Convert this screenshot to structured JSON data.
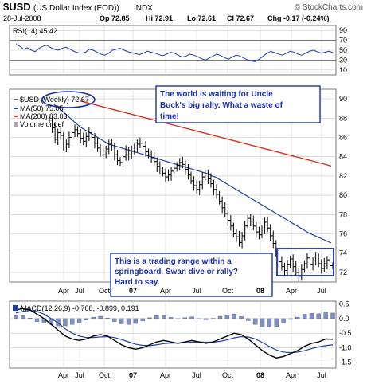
{
  "header": {
    "symbol": "$USD",
    "name": "(US Dollar Index (EOD))",
    "exchange": "INDX",
    "watermark": "© StockCharts.com",
    "date": "28-Jul-2008",
    "quote": {
      "op": "Op 72.85",
      "hi": "Hi 72.91",
      "lo": "Lo 72.61",
      "cl": "Cl 72.67",
      "chg": "Chg -0.17 (-0.24%)"
    }
  },
  "colors": {
    "price": "#000000",
    "ma50": "#1f3fa8",
    "ma200": "#d8321e",
    "rsi": "#1f3fa8",
    "macd": "#000000",
    "signal": "#1f3fa8",
    "histogram": "#7f8fbf",
    "grid": "#c8c8c8",
    "annotation": "#1a2fb0",
    "band": "#1a2fb0"
  },
  "rsi_panel": {
    "label": "RSI(14) 45.42",
    "ticks": [
      "90",
      "70",
      "50",
      "30",
      "10"
    ]
  },
  "price_panel": {
    "legend": {
      "price": "$USD (Weekly) 72.67",
      "ma50": "MA(50) 75.05",
      "ma200": "MA(200) 83.03",
      "volume": "Volume undef"
    },
    "y_ticks": [
      "90",
      "88",
      "86",
      "84",
      "82",
      "80",
      "78",
      "76",
      "74",
      "72"
    ]
  },
  "annotations": {
    "top": "The world is waiting for Uncle Buck's big rally.  What a waste of time!",
    "bottom": "This is a trading range within a springboard.  Swan dive or rally? Hard to say."
  },
  "macd_panel": {
    "label": "MACD(12,26,9) -0.708, -0.899, 0.191",
    "y_ticks": [
      "0.5",
      "0.0",
      "-0.5",
      "-1.0",
      "-1.5"
    ]
  },
  "x_axis": {
    "labels": [
      "Apr",
      "Jul",
      "Oct",
      "07",
      "Apr",
      "Jul",
      "Oct",
      "08",
      "Apr",
      "Jul"
    ]
  },
  "chart_data": {
    "type": "line",
    "title": "$USD (US Dollar Index (EOD)) INDX",
    "price_close": [
      87.8,
      87.0,
      85.8,
      86.5,
      86.2,
      85.0,
      85.3,
      86.0,
      86.5,
      86.8,
      86.4,
      85.9,
      85.6,
      86.1,
      86.5,
      86.0,
      85.4,
      84.9,
      84.6,
      84.2,
      84.8,
      85.3,
      85.0,
      84.2,
      83.6,
      83.4,
      84.0,
      84.6,
      84.2,
      84.6,
      85.0,
      85.3,
      85.4,
      85.1,
      84.5,
      84.2,
      83.9,
      83.5,
      83.0,
      82.6,
      82.3,
      81.9,
      82.1,
      82.5,
      82.8,
      83.1,
      83.4,
      83.2,
      82.7,
      82.1,
      81.5,
      81.0,
      80.6,
      81.1,
      81.9,
      82.2,
      81.7,
      81.2,
      80.6,
      80.1,
      79.4,
      78.7,
      78.1,
      77.4,
      76.8,
      76.0,
      75.7,
      75.1,
      75.8,
      76.8,
      77.6,
      77.3,
      76.8,
      76.2,
      75.9,
      76.5,
      77.2,
      76.6,
      75.8,
      75.0,
      74.0,
      73.1,
      72.6,
      72.2,
      72.8,
      73.4,
      72.6,
      72.0,
      71.6,
      72.3,
      72.9,
      73.5,
      72.8,
      73.2,
      73.6,
      72.9,
      72.4,
      72.9,
      73.3,
      72.7,
      72.67
    ],
    "ma50": [
      89.4,
      89.2,
      88.9,
      88.6,
      88.3,
      88.0,
      87.7,
      87.4,
      87.1,
      86.9,
      86.7,
      86.5,
      86.3,
      86.1,
      85.9,
      85.7,
      85.5,
      85.3,
      85.2,
      85.1,
      85.0,
      84.9,
      84.8,
      84.7,
      84.6,
      84.5,
      84.4,
      84.3,
      84.2,
      84.1,
      84.0,
      83.9,
      83.8,
      83.7,
      83.6,
      83.5,
      83.4,
      83.3,
      83.2,
      83.1,
      83.0,
      82.9,
      82.8,
      82.7,
      82.6,
      82.5,
      82.4,
      82.3,
      82.2,
      82.0,
      81.9,
      81.7,
      81.5,
      81.3,
      81.1,
      80.9,
      80.7,
      80.5,
      80.3,
      80.1,
      79.9,
      79.7,
      79.5,
      79.3,
      79.1,
      78.9,
      78.7,
      78.5,
      78.3,
      78.1,
      77.9,
      77.7,
      77.5,
      77.3,
      77.1,
      76.9,
      76.7,
      76.5,
      76.3,
      76.1,
      75.95,
      75.8,
      75.65,
      75.5,
      75.35,
      75.2,
      75.05
    ],
    "ma200": [
      89.8,
      89.65,
      89.5,
      89.35,
      89.2,
      89.05,
      88.9,
      88.75,
      88.6,
      88.45,
      88.3,
      88.15,
      88.0,
      87.85,
      87.7,
      87.55,
      87.4,
      87.25,
      87.1,
      86.95,
      86.8,
      86.65,
      86.5,
      86.35,
      86.2,
      86.05,
      85.9,
      85.75,
      85.6,
      85.45,
      85.3,
      85.15,
      85.0,
      84.85,
      84.7,
      84.55,
      84.4,
      84.25,
      84.1,
      83.95,
      83.8,
      83.65,
      83.5,
      83.35,
      83.2,
      83.03
    ],
    "rsi": [
      62,
      58,
      52,
      55,
      50,
      47,
      54,
      58,
      60,
      55,
      52,
      50,
      54,
      56,
      52,
      48,
      45,
      44,
      46,
      52,
      50,
      46,
      42,
      40,
      44,
      50,
      52,
      54,
      50,
      47,
      45,
      43,
      41,
      44,
      48,
      46,
      44,
      41,
      39,
      42,
      46,
      44,
      40,
      36,
      38,
      42,
      40,
      37,
      33,
      30,
      34,
      38,
      42,
      39,
      35,
      32,
      36,
      40,
      38,
      34,
      30,
      28,
      27,
      32,
      38,
      44,
      48,
      45,
      42,
      40,
      44,
      48,
      46,
      42,
      40,
      44,
      48,
      50,
      47,
      44,
      46,
      48,
      45.42
    ],
    "macd": [
      0.3,
      0.35,
      0.3,
      0.15,
      0.0,
      -0.2,
      -0.4,
      -0.6,
      -0.7,
      -0.75,
      -0.7,
      -0.6,
      -0.55,
      -0.6,
      -0.75,
      -0.9,
      -1.0,
      -1.05,
      -1.0,
      -0.9,
      -0.8,
      -0.75,
      -0.8,
      -0.85,
      -0.8,
      -0.75,
      -0.8,
      -0.85,
      -0.8,
      -0.7,
      -0.6,
      -0.5,
      -0.55,
      -0.7,
      -0.9,
      -1.1,
      -1.25,
      -1.35,
      -1.3,
      -1.2,
      -1.1,
      -0.95,
      -0.85,
      -0.8,
      -0.7,
      -0.708
    ],
    "signal": [
      0.2,
      0.25,
      0.28,
      0.25,
      0.15,
      0.0,
      -0.15,
      -0.35,
      -0.5,
      -0.6,
      -0.65,
      -0.65,
      -0.63,
      -0.62,
      -0.65,
      -0.72,
      -0.8,
      -0.88,
      -0.92,
      -0.93,
      -0.9,
      -0.86,
      -0.84,
      -0.84,
      -0.83,
      -0.81,
      -0.8,
      -0.81,
      -0.81,
      -0.78,
      -0.73,
      -0.66,
      -0.62,
      -0.63,
      -0.7,
      -0.82,
      -0.96,
      -1.08,
      -1.15,
      -1.17,
      -1.15,
      -1.1,
      -1.03,
      -0.97,
      -0.93,
      -0.899
    ],
    "ylim_price": [
      71,
      91
    ],
    "ylim_rsi": [
      0,
      100
    ],
    "ylim_macd": [
      -1.7,
      0.6
    ]
  }
}
